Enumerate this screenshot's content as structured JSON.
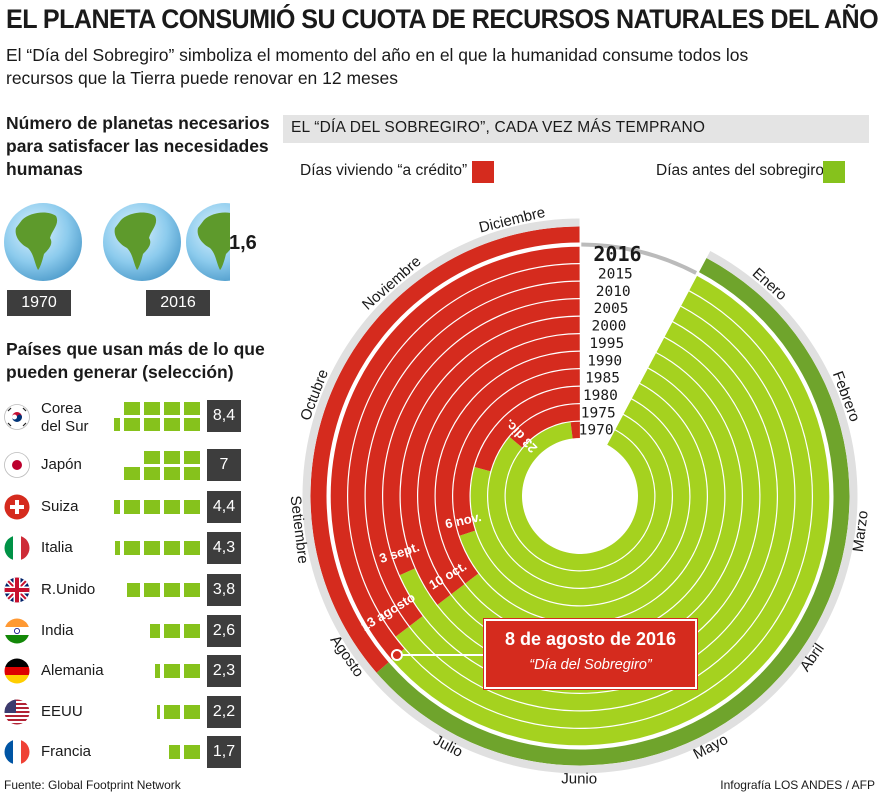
{
  "header": {
    "title": "EL PLANETA CONSUMIÓ SU CUOTA DE RECURSOS NATURALES DEL AÑO",
    "subtitle_line1": "El “Día del Sobregiro” simboliza el momento del año en el que la humanidad consume todos los",
    "subtitle_line2": "recursos que la Tierra puede renovar en 12 meses"
  },
  "planets": {
    "heading_line1": "Número de planetas necesarios",
    "heading_line2": "para satisfacer las necesidades",
    "heading_line3": "humanas",
    "year_1970": "1970",
    "year_2016": "2016",
    "value_2016": "1,6"
  },
  "countries": {
    "heading_line1": "Países que usan más de lo que",
    "heading_line2": "pueden generar (selección)",
    "items": [
      {
        "name_line1": "Corea",
        "name_line2": "del Sur",
        "value": "8,4",
        "planets": 8.4
      },
      {
        "name_line1": "Japón",
        "name_line2": "",
        "value": "7",
        "planets": 7
      },
      {
        "name_line1": "Suiza",
        "name_line2": "",
        "value": "4,4",
        "planets": 4.4
      },
      {
        "name_line1": "Italia",
        "name_line2": "",
        "value": "4,3",
        "planets": 4.3
      },
      {
        "name_line1": "R.Unido",
        "name_line2": "",
        "value": "3,8",
        "planets": 3.8
      },
      {
        "name_line1": "India",
        "name_line2": "",
        "value": "2,6",
        "planets": 2.6
      },
      {
        "name_line1": "Alemania",
        "name_line2": "",
        "value": "2,3",
        "planets": 2.3
      },
      {
        "name_line1": "EEUU",
        "name_line2": "",
        "value": "2,2",
        "planets": 2.2
      },
      {
        "name_line1": "Francia",
        "name_line2": "",
        "value": "1,7",
        "planets": 1.7
      }
    ]
  },
  "chart_data": {
    "type": "radial-bar",
    "title": "EL “DÍA DEL SOBREGIRO”, CADA VEZ MÁS TEMPRANO",
    "legend": {
      "credit": "Días viviendo “a crédito”",
      "before": "Días antes del sobregiro"
    },
    "months": [
      "Enero",
      "Febrero",
      "Marzo",
      "Abril",
      "Mayo",
      "Junio",
      "Julio",
      "Agosto",
      "Setiembre",
      "Octubre",
      "Noviembre",
      "Diciembre"
    ],
    "years": [
      "1970",
      "1975",
      "1980",
      "1985",
      "1990",
      "1995",
      "2000",
      "2005",
      "2010",
      "2015",
      "2016"
    ],
    "overshoot_day_of_year": [
      357,
      310,
      283,
      246,
      225,
      225,
      225,
      240,
      225,
      225,
      221
    ],
    "date_labels": [
      {
        "text": "23 dic.",
        "ring": 0
      },
      {
        "text": "6 nov.",
        "ring": 1
      },
      {
        "text": "10 oct.",
        "ring": 2
      },
      {
        "text": "3 sept.",
        "ring": 3
      },
      {
        "text": "13 agosto",
        "ring": 4
      }
    ],
    "highlight_year": "2016",
    "callout_date": "8 de agosto de 2016",
    "callout_label": "“Día del Sobregiro”",
    "colors": {
      "credit": "#d52b1e",
      "before": "#a5d21f",
      "before_dark": "#6fa42c",
      "grey": "#e0e0e0"
    }
  },
  "footer": {
    "source": "Fuente: Global Footprint Network",
    "credit": "Infografía LOS ANDES / AFP"
  }
}
